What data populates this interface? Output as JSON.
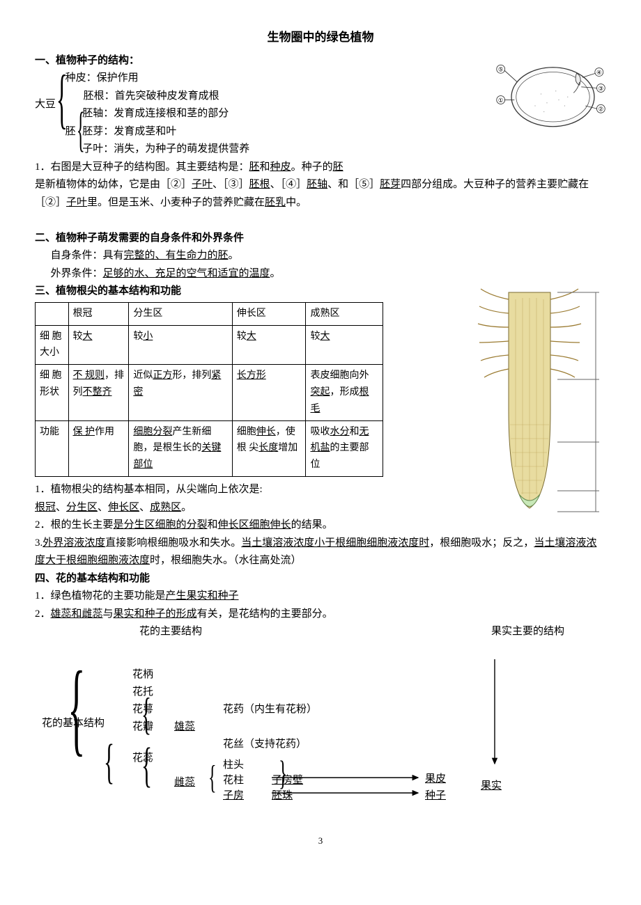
{
  "title": "生物圈中的绿色植物",
  "s1": {
    "head": "一、植物种子的结构：",
    "dadou": "大豆",
    "seed_coat": "种皮：保护作用",
    "radicle": "胚根：首先突破种皮发育成根",
    "embryo_label": "胚",
    "hypocotyl": "胚轴：发育成连接根和茎的部分",
    "plumule": "胚芽：发育成茎和叶",
    "cotyledon": "子叶：消失，为种子的萌发提供营养",
    "p1a": "1．右图是大豆种子的结构图。其主要结构是：",
    "p1_u1": "胚",
    "p1_mid": "和",
    "p1_u2": "种皮",
    "p1b": "。种子的",
    "p1_u3": "胚",
    "p2a": "是新植物体的幼体，它是由［②］",
    "p2_u1": "子叶",
    "p2b": "、［③］",
    "p2_u2": "胚根",
    "p2c": "、［④］",
    "p2_u3": "胚轴",
    "p2d": "、和［⑤］",
    "p2_u4": "胚芽",
    "p2e": "四部分组成。大豆种子的营养主要贮藏在［②］",
    "p2_u5": "子叶",
    "p2f": "里。但是玉米、小麦种子的营养贮藏在",
    "p2_u6": "胚乳",
    "p2g": "中。"
  },
  "s2": {
    "head": "二、植物种子萌发需要的自身条件和外界条件",
    "l1a": "自身条件：具有",
    "l1_u1": "完整的、有生命力的胚",
    "l1b": "。",
    "l2a": "外界条件：",
    "l2_u1": "足够的水、充足的空气和适宜的温度",
    "l2b": "。"
  },
  "s3": {
    "head": "三、植物根尖的基本结构和功能",
    "table": {
      "cols": [
        "",
        "根冠",
        "分生区",
        "伸长区",
        "成熟区"
      ],
      "rows": [
        {
          "h": "细 胞大小",
          "c": [
            {
              "pre": "较",
              "u": "大"
            },
            {
              "pre": "较",
              "u": "小"
            },
            {
              "pre": "较",
              "u": "大"
            },
            {
              "pre": "较",
              "u": "大"
            }
          ]
        },
        {
          "h": "细 胞形状",
          "c": [
            {
              "seg": [
                {
                  "u": "不 规则"
                },
                {
                  "t": "，排列"
                },
                {
                  "u": "不整齐"
                }
              ]
            },
            {
              "seg": [
                {
                  "t": "近似"
                },
                {
                  "u": "正方"
                },
                {
                  "t": "形，排列"
                },
                {
                  "u": "紧密"
                }
              ]
            },
            {
              "u": "长方形"
            },
            {
              "seg": [
                {
                  "t": "表皮细胞向外"
                },
                {
                  "u": "突起"
                },
                {
                  "t": "，形成"
                },
                {
                  "u": "根毛"
                }
              ]
            }
          ]
        },
        {
          "h": "功能",
          "c": [
            {
              "seg": [
                {
                  "u": "保 护"
                },
                {
                  "t": "作用"
                }
              ]
            },
            {
              "seg": [
                {
                  "u": "细胞分裂"
                },
                {
                  "t": "产生新细胞，是根生长的"
                },
                {
                  "u": "关键部位"
                }
              ]
            },
            {
              "seg": [
                {
                  "t": "细胞"
                },
                {
                  "u": "伸长"
                },
                {
                  "t": "，使根 尖"
                },
                {
                  "u": "长度"
                },
                {
                  "t": "增加"
                }
              ]
            },
            {
              "seg": [
                {
                  "t": "吸收"
                },
                {
                  "u": "水分"
                },
                {
                  "t": "和"
                },
                {
                  "u": "无机盐"
                },
                {
                  "t": "的主要部位"
                }
              ]
            }
          ]
        }
      ]
    },
    "p1a": "1．植物根尖的结构基本相同，从尖端向上依次是:",
    "p1_u1": "根冠",
    "p1s": "、",
    "p1_u2": "分生区",
    "p1_u3": "伸长区",
    "p1_u4": "成熟区",
    "p1end": "。",
    "p2a": "2．根的生长主要",
    "p2_u1": "是分生区细胞的分裂",
    "p2b": "和",
    "p2_u2": "伸长区细胞伸长",
    "p2c": "的结果。",
    "p3a": "3.",
    "p3_u1": "外界溶液浓度",
    "p3b": "直接影响根细胞吸水和失水。",
    "p3_u2": "当土壤溶液浓度小于根细胞细胞液浓度时",
    "p3c": "，根细胞吸水；反之，",
    "p3_u3": "当土壤溶液浓度大于根细胞细胞液浓度",
    "p3d": "时，根细胞失水。（水往高处流）"
  },
  "s4": {
    "head": "四、花的基本结构和功能",
    "p1a": "1．绿色植物花的主要功能是",
    "p1_u": "产生果实和种子",
    "p2a": "2．",
    "p2_u1": "雄蕊和雌蕊",
    "p2b": "与",
    "p2_u2": "果实和种子的形成",
    "p2c": "有关，是花结构的主要部分。",
    "col1": "花的主要结构",
    "col2": "果实主要的结构",
    "root": "花的基本结构",
    "parts": {
      "stalk": "花柄",
      "receptacle": "花托",
      "sepal": "花萼",
      "petal": "花瓣",
      "stamen_pistil": "花蕊",
      "stamen": "雄蕊",
      "anther": "花药（内生有花粉）",
      "filament": "花丝（支持花药）",
      "pistil": "雌蕊",
      "stigma": "柱头",
      "style": "花柱",
      "ovary": "子房",
      "ovary_wall": "子房壁",
      "ovule": "胚珠",
      "pericarp": "果皮",
      "seed": "种子",
      "fruit": "果实"
    }
  },
  "page": "3",
  "seed_diagram": {
    "bg": "#ffffff",
    "stroke": "#333333",
    "labels": [
      "①",
      "②",
      "③",
      "④",
      "⑤"
    ]
  },
  "root_diagram": {
    "outer": "#d8c878",
    "inner": "#e8dca0",
    "tip": "#c8e8b8",
    "hair": "#b89850"
  }
}
